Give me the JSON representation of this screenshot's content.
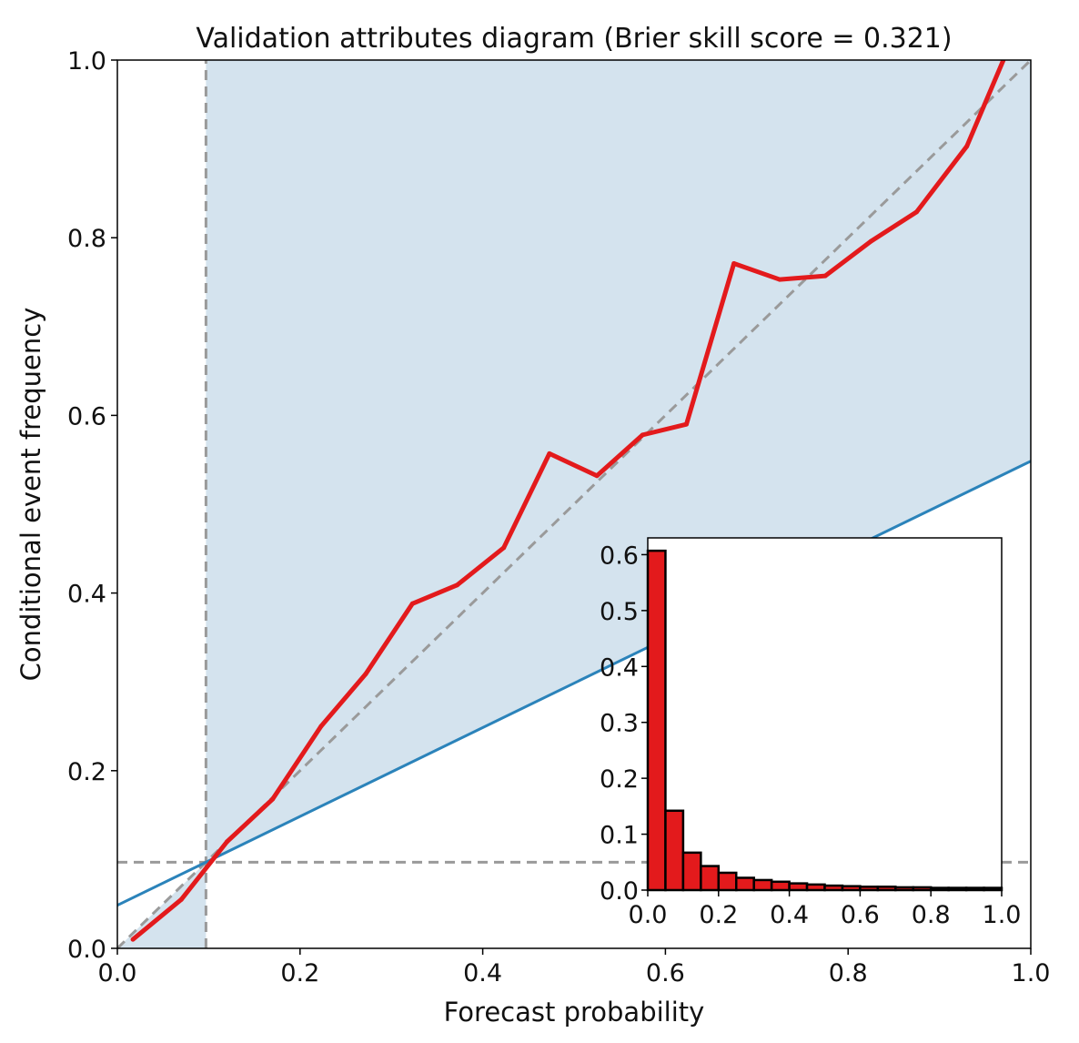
{
  "chart_data": {
    "type": "line",
    "title": "Validation attributes diagram (Brier skill score = 0.321)",
    "xlabel": "Forecast probability",
    "ylabel": "Conditional event frequency",
    "xlim": [
      0,
      1
    ],
    "ylim": [
      0,
      1
    ],
    "xticks": [
      "0.0",
      "0.2",
      "0.4",
      "0.6",
      "0.8",
      "1.0"
    ],
    "yticks": [
      "0.0",
      "0.2",
      "0.4",
      "0.6",
      "0.8",
      "1.0"
    ],
    "climatology": 0.097,
    "grid": false,
    "reliability_curve": {
      "color": "#e31a1c",
      "x": [
        0.017,
        0.07,
        0.12,
        0.17,
        0.223,
        0.272,
        0.323,
        0.372,
        0.423,
        0.473,
        0.525,
        0.575,
        0.623,
        0.675,
        0.725,
        0.775,
        0.825,
        0.875,
        0.93,
        0.97
      ],
      "y": [
        0.01,
        0.055,
        0.12,
        0.168,
        0.25,
        0.309,
        0.388,
        0.409,
        0.451,
        0.557,
        0.532,
        0.578,
        0.59,
        0.771,
        0.753,
        0.757,
        0.796,
        0.829,
        0.903,
        1.0
      ]
    },
    "perfect_reliability": {
      "style": "dashed",
      "color": "#9a9a9a",
      "x": [
        0,
        1
      ],
      "y": [
        0,
        1
      ]
    },
    "no_skill_line": {
      "color": "#2b83ba",
      "x": [
        0,
        1
      ],
      "y": [
        0.0485,
        0.5485
      ]
    },
    "skill_area_color": "#d4e3ee",
    "inset_histogram": {
      "type": "bar",
      "bar_color": "#e31a1c",
      "xlim": [
        0,
        1
      ],
      "ylim": [
        0,
        0.63
      ],
      "xticks": [
        "0.0",
        "0.2",
        "0.4",
        "0.6",
        "0.8",
        "1.0"
      ],
      "yticks": [
        "0.0",
        "0.1",
        "0.2",
        "0.3",
        "0.4",
        "0.5",
        "0.6"
      ],
      "bin_edges": [
        0,
        0.05,
        0.1,
        0.15,
        0.2,
        0.25,
        0.3,
        0.35,
        0.4,
        0.45,
        0.5,
        0.55,
        0.6,
        0.65,
        0.7,
        0.75,
        0.8,
        0.85,
        0.9,
        0.95,
        1.0
      ],
      "values": [
        0.607,
        0.142,
        0.067,
        0.043,
        0.031,
        0.022,
        0.018,
        0.015,
        0.012,
        0.01,
        0.008,
        0.007,
        0.006,
        0.006,
        0.005,
        0.005,
        0.004,
        0.004,
        0.004,
        0.004
      ]
    }
  }
}
